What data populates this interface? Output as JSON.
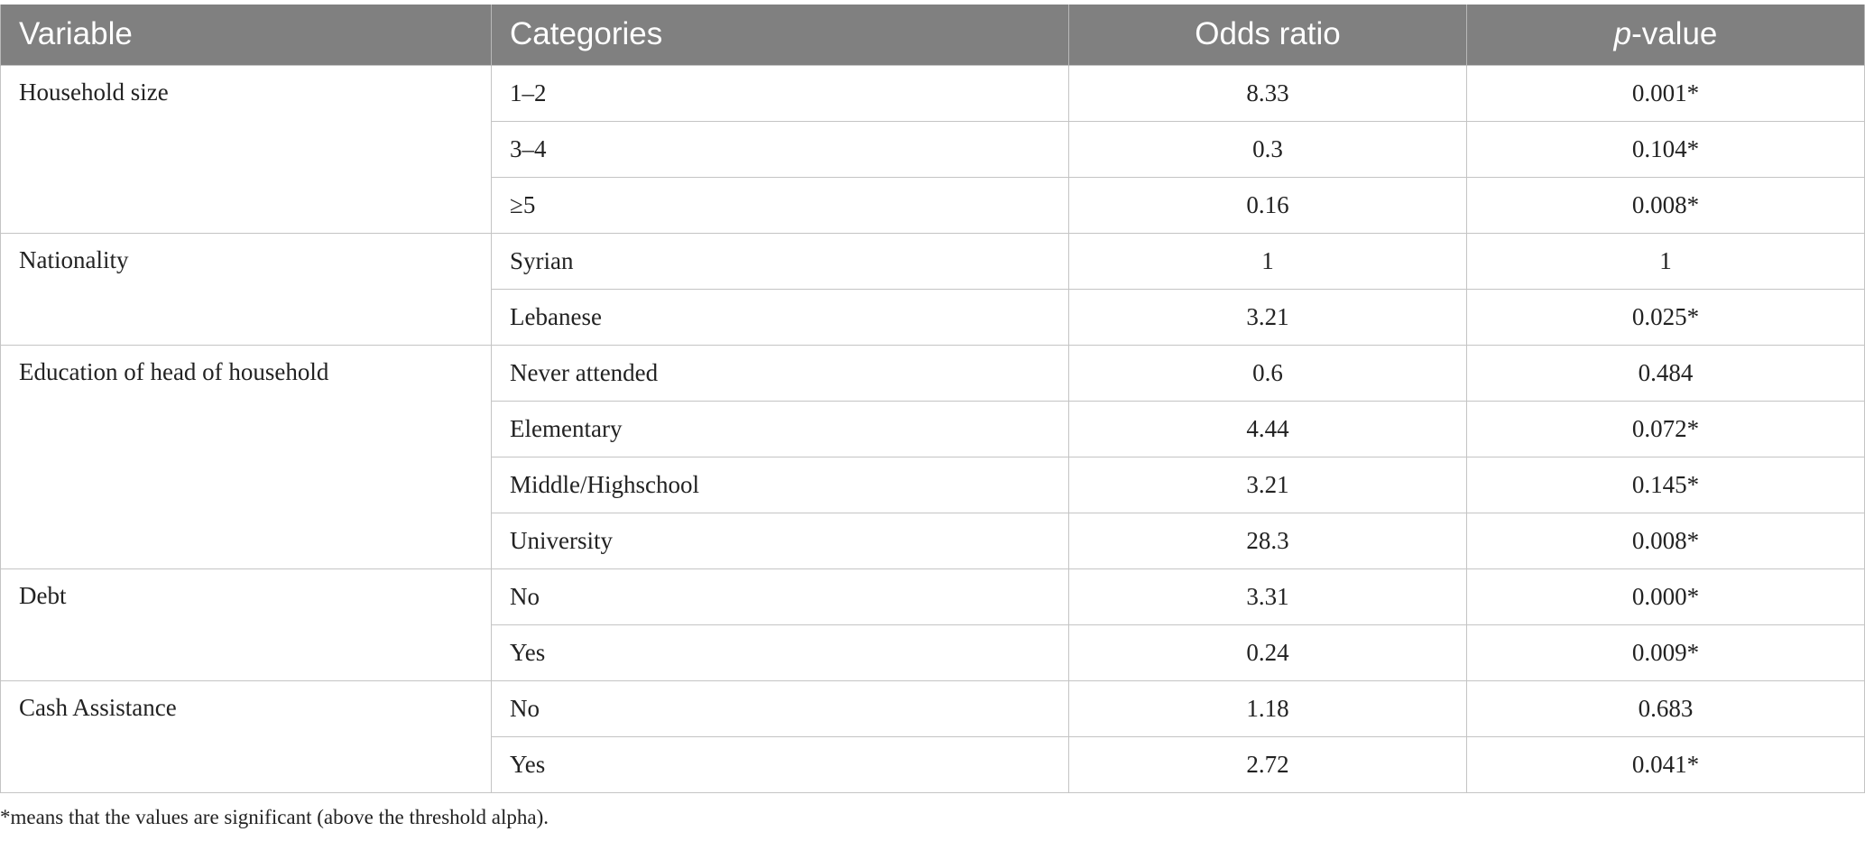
{
  "table": {
    "headers": {
      "variable": "Variable",
      "categories": "Categories",
      "odds_ratio": "Odds ratio",
      "p_value_italic": "p",
      "p_value_rest": "-value"
    },
    "groups": [
      {
        "variable": "Household size",
        "rows": [
          {
            "category": "1–2",
            "odds_ratio": "8.33",
            "p_value": "0.001*"
          },
          {
            "category": "3–4",
            "odds_ratio": "0.3",
            "p_value": "0.104*"
          },
          {
            "category": "≥5",
            "odds_ratio": "0.16",
            "p_value": "0.008*"
          }
        ]
      },
      {
        "variable": "Nationality",
        "rows": [
          {
            "category": "Syrian",
            "odds_ratio": "1",
            "p_value": "1"
          },
          {
            "category": "Lebanese",
            "odds_ratio": "3.21",
            "p_value": "0.025*"
          }
        ]
      },
      {
        "variable": "Education of head of household",
        "rows": [
          {
            "category": "Never attended",
            "odds_ratio": "0.6",
            "p_value": "0.484"
          },
          {
            "category": "Elementary",
            "odds_ratio": "4.44",
            "p_value": "0.072*"
          },
          {
            "category": "Middle/Highschool",
            "odds_ratio": "3.21",
            "p_value": "0.145*"
          },
          {
            "category": "University",
            "odds_ratio": "28.3",
            "p_value": "0.008*"
          }
        ]
      },
      {
        "variable": "Debt",
        "rows": [
          {
            "category": "No",
            "odds_ratio": "3.31",
            "p_value": "0.000*"
          },
          {
            "category": "Yes",
            "odds_ratio": "0.24",
            "p_value": "0.009*"
          }
        ]
      },
      {
        "variable": "Cash Assistance",
        "rows": [
          {
            "category": "No",
            "odds_ratio": "1.18",
            "p_value": "0.683"
          },
          {
            "category": "Yes",
            "odds_ratio": "2.72",
            "p_value": "0.041*"
          }
        ]
      }
    ]
  },
  "footnote": "*means that the values are significant (above the threshold alpha)."
}
